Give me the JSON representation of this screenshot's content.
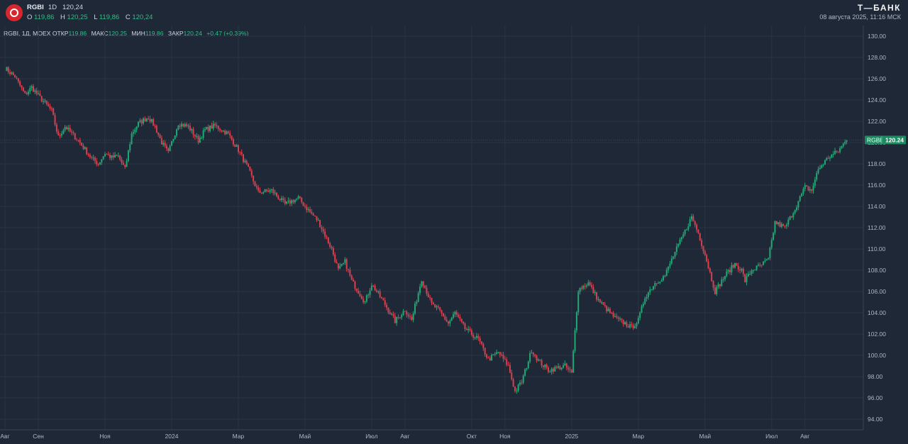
{
  "header": {
    "ticker": "RGBI",
    "timeframe": "1D",
    "last_price": "120,24",
    "ohlc": [
      {
        "label": "O",
        "value": "119,86"
      },
      {
        "label": "H",
        "value": "120,25"
      },
      {
        "label": "L",
        "value": "119,86"
      },
      {
        "label": "C",
        "value": "120,24"
      }
    ],
    "brand": "Т—БАНК",
    "timestamp": "08 августа 2025, 11:16 МСК"
  },
  "legend": {
    "symbol": "RGBI, 1Д, MOEX",
    "open_label": "ОТКР",
    "open_value": "119.86",
    "high_label": "МАКС",
    "high_value": "120.25",
    "low_label": "МИН",
    "low_value": "119.86",
    "close_label": "ЗАКР",
    "close_value": "120.24",
    "change": "+0.47 (+0.39%)"
  },
  "price_tag": {
    "symbol": "RGBI",
    "value": "120.24"
  },
  "colors": {
    "background": "#1e2836",
    "up": "#22a876",
    "down": "#d9404f",
    "grid": "#2a3544",
    "tag": "#1e8a62"
  },
  "chart_data": {
    "type": "candlestick",
    "series_name": "RGBI",
    "ylim": [
      93.0,
      131.0
    ],
    "y_ticks": [
      "94.00",
      "96.00",
      "98.00",
      "100.00",
      "102.00",
      "104.00",
      "106.00",
      "108.00",
      "110.00",
      "112.00",
      "114.00",
      "116.00",
      "118.00",
      "120.00",
      "122.00",
      "124.00",
      "126.00",
      "128.00",
      "130.00"
    ],
    "x_labels": [
      "Авг",
      "Сен",
      "Ноя",
      "2024",
      "Мар",
      "Май",
      "Июл",
      "Авг",
      "Окт",
      "Ноя",
      "2025",
      "Мар",
      "Май",
      "Июл",
      "Авг"
    ],
    "x_label_months": [
      0,
      1,
      3,
      5,
      7,
      9,
      11,
      12,
      14,
      15,
      17,
      19,
      21,
      23,
      24
    ],
    "x_start": "2023-08",
    "x_end": "2025-08-08",
    "close_path": [
      [
        0.0,
        127.0
      ],
      [
        0.3,
        126.2
      ],
      [
        0.6,
        124.5
      ],
      [
        0.8,
        125.2
      ],
      [
        1.0,
        124.4
      ],
      [
        1.4,
        123.0
      ],
      [
        1.6,
        120.5
      ],
      [
        1.8,
        121.5
      ],
      [
        2.2,
        120.2
      ],
      [
        2.6,
        118.5
      ],
      [
        2.8,
        118.0
      ],
      [
        3.0,
        119.0
      ],
      [
        3.2,
        118.6
      ],
      [
        3.4,
        118.7
      ],
      [
        3.6,
        117.5
      ],
      [
        3.8,
        120.8
      ],
      [
        4.0,
        121.8
      ],
      [
        4.3,
        122.4
      ],
      [
        4.5,
        121.5
      ],
      [
        4.7,
        120.0
      ],
      [
        4.9,
        119.0
      ],
      [
        5.0,
        120.0
      ],
      [
        5.2,
        121.8
      ],
      [
        5.5,
        121.5
      ],
      [
        5.8,
        120.2
      ],
      [
        6.0,
        121.2
      ],
      [
        6.3,
        121.6
      ],
      [
        6.7,
        120.8
      ],
      [
        7.0,
        119.3
      ],
      [
        7.3,
        117.5
      ],
      [
        7.6,
        115.3
      ],
      [
        8.0,
        115.5
      ],
      [
        8.4,
        114.2
      ],
      [
        8.8,
        114.8
      ],
      [
        9.0,
        114.0
      ],
      [
        9.4,
        112.6
      ],
      [
        9.8,
        110.0
      ],
      [
        10.0,
        108.0
      ],
      [
        10.2,
        108.8
      ],
      [
        10.4,
        107.0
      ],
      [
        10.8,
        105.0
      ],
      [
        11.0,
        106.7
      ],
      [
        11.4,
        104.8
      ],
      [
        11.7,
        103.2
      ],
      [
        12.0,
        104.3
      ],
      [
        12.2,
        103.3
      ],
      [
        12.5,
        107.2
      ],
      [
        12.8,
        104.8
      ],
      [
        13.0,
        104.3
      ],
      [
        13.3,
        103.0
      ],
      [
        13.5,
        104.0
      ],
      [
        13.8,
        102.5
      ],
      [
        14.2,
        101.5
      ],
      [
        14.5,
        99.6
      ],
      [
        14.8,
        100.3
      ],
      [
        15.1,
        99.0
      ],
      [
        15.3,
        96.6
      ],
      [
        15.5,
        97.5
      ],
      [
        15.8,
        100.5
      ],
      [
        16.0,
        99.5
      ],
      [
        16.3,
        98.6
      ],
      [
        16.8,
        99.0
      ],
      [
        17.0,
        98.3
      ],
      [
        17.1,
        102.3
      ],
      [
        17.2,
        106.2
      ],
      [
        17.5,
        106.8
      ],
      [
        17.8,
        105.2
      ],
      [
        18.0,
        104.5
      ],
      [
        18.3,
        103.5
      ],
      [
        18.6,
        103.0
      ],
      [
        18.8,
        102.6
      ],
      [
        19.0,
        103.3
      ],
      [
        19.2,
        105.5
      ],
      [
        19.5,
        106.8
      ],
      [
        19.8,
        107.5
      ],
      [
        20.0,
        109.0
      ],
      [
        20.3,
        111.0
      ],
      [
        20.6,
        113.0
      ],
      [
        20.8,
        111.5
      ],
      [
        21.0,
        109.5
      ],
      [
        21.3,
        106.0
      ],
      [
        21.6,
        107.5
      ],
      [
        21.9,
        108.6
      ],
      [
        22.1,
        108.0
      ],
      [
        22.2,
        107.0
      ],
      [
        22.4,
        108.0
      ],
      [
        22.7,
        108.5
      ],
      [
        22.9,
        109.0
      ],
      [
        23.1,
        112.5
      ],
      [
        23.4,
        112.0
      ],
      [
        23.7,
        113.8
      ],
      [
        24.0,
        115.8
      ],
      [
        24.2,
        115.5
      ],
      [
        24.4,
        117.5
      ],
      [
        24.7,
        118.6
      ],
      [
        25.0,
        119.2
      ],
      [
        25.25,
        120.24
      ]
    ],
    "last_value": 120.24
  }
}
